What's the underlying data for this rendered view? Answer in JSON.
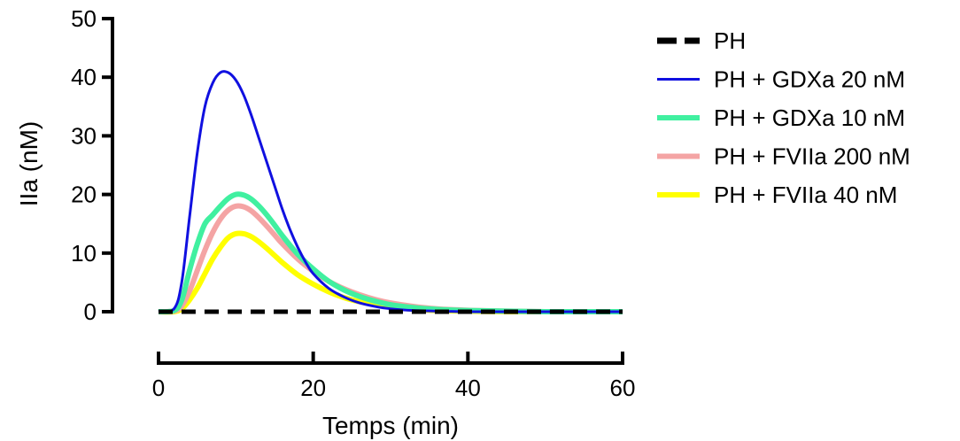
{
  "chart_data": {
    "type": "line",
    "title": "",
    "xlabel": "Temps (min)",
    "ylabel": "IIa (nM)",
    "xlim": [
      0,
      60
    ],
    "ylim": [
      0,
      50
    ],
    "xticks": [
      0,
      20,
      40,
      60
    ],
    "yticks": [
      0,
      10,
      20,
      30,
      40,
      50
    ],
    "grid": false,
    "legend_position": "right",
    "series": [
      {
        "name": "PH",
        "color": "#000000",
        "dash": "dashed",
        "x": [
          0,
          10,
          20,
          30,
          40,
          50,
          60
        ],
        "y": [
          0,
          0,
          0,
          0,
          0,
          0,
          0
        ]
      },
      {
        "name": "PH + GDXa 20 nM",
        "color": "#1010e0",
        "dash": "solid",
        "x": [
          0,
          2,
          3,
          4,
          5,
          6,
          7,
          8,
          9,
          10,
          11,
          12,
          13,
          14,
          15,
          16,
          17,
          18,
          19,
          20,
          22,
          24,
          26,
          28,
          30,
          33,
          36,
          40,
          45,
          50,
          55,
          60
        ],
        "y": [
          0,
          0.5,
          5,
          16,
          27,
          35,
          39,
          40.8,
          40.8,
          39.5,
          37,
          33.5,
          29.5,
          25.5,
          21.5,
          17.5,
          14,
          11,
          8.5,
          6.5,
          4,
          2.5,
          1.5,
          0.9,
          0.5,
          0.2,
          0.1,
          0,
          0,
          0,
          0,
          0
        ]
      },
      {
        "name": "PH + GDXa 10 nM",
        "color": "#40f0a0",
        "dash": "solid",
        "x": [
          0,
          2,
          3,
          4,
          5,
          6,
          7,
          8,
          9,
          10,
          11,
          12,
          13,
          14,
          15,
          16,
          18,
          20,
          22,
          24,
          26,
          28,
          30,
          33,
          36,
          40,
          45,
          50,
          55,
          60
        ],
        "y": [
          0,
          0.2,
          2,
          7,
          11.5,
          15,
          16.5,
          18,
          19.3,
          20,
          19.9,
          19.2,
          18,
          16.5,
          14.8,
          13,
          9.8,
          7.3,
          5.2,
          3.7,
          2.6,
          1.8,
          1.2,
          0.7,
          0.4,
          0.2,
          0.1,
          0,
          0,
          0
        ]
      },
      {
        "name": "PH + FVIIa 200 nM",
        "color": "#f4a4a4",
        "dash": "solid",
        "x": [
          0,
          2,
          3,
          4,
          5,
          6,
          7,
          8,
          9,
          10,
          11,
          12,
          13,
          14,
          15,
          16,
          18,
          20,
          22,
          24,
          26,
          28,
          30,
          33,
          36,
          40,
          45,
          50,
          55,
          60
        ],
        "y": [
          0,
          0.1,
          1,
          3.5,
          7,
          10.5,
          13.5,
          15.8,
          17.3,
          18,
          17.9,
          17.2,
          16,
          14.6,
          13.1,
          11.6,
          9,
          6.9,
          5.2,
          3.9,
          2.9,
          2.1,
          1.5,
          0.9,
          0.5,
          0.25,
          0.1,
          0,
          0,
          0
        ]
      },
      {
        "name": "PH + FVIIa 40 nM",
        "color": "#ffff00",
        "dash": "solid",
        "x": [
          0,
          2,
          3,
          4,
          5,
          6,
          7,
          8,
          9,
          10,
          11,
          12,
          13,
          14,
          15,
          16,
          18,
          20,
          22,
          24,
          26,
          28,
          30,
          33,
          36,
          40,
          45,
          50,
          55,
          60
        ],
        "y": [
          0,
          0,
          0.5,
          2,
          4,
          6.5,
          9,
          11,
          12.6,
          13.3,
          13.3,
          12.8,
          11.9,
          10.8,
          9.6,
          8.4,
          6.3,
          4.7,
          3.4,
          2.4,
          1.7,
          1.2,
          0.8,
          0.4,
          0.2,
          0.1,
          0,
          0,
          0,
          0
        ]
      }
    ]
  }
}
